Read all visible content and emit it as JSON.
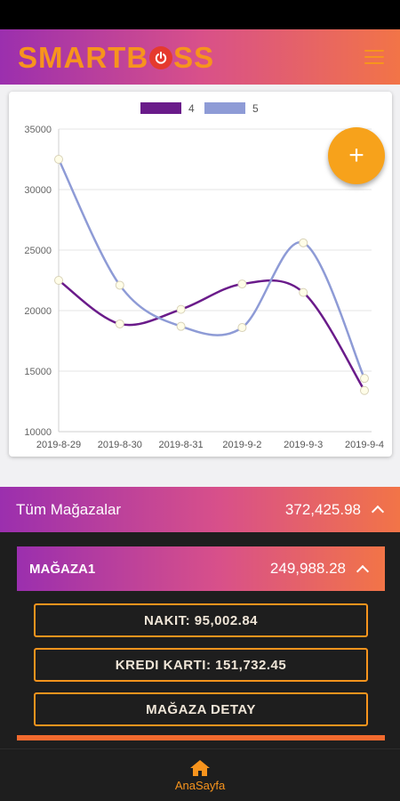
{
  "app": {
    "logo_left": "SMARTB",
    "logo_right": "SS"
  },
  "colors": {
    "accent_orange": "#f7941d",
    "gradient_start": "#9b2fae",
    "gradient_end": "#f27447",
    "series_4": "#6a1b8a",
    "series_5": "#8e9bd6"
  },
  "icons": {
    "menu": "hamburger-menu-icon",
    "fab": "plus-icon",
    "expand": "chevron-up-icon",
    "home": "home-icon"
  },
  "fab": {
    "label": "+"
  },
  "chart_data": {
    "type": "line",
    "categories": [
      "2019-8-29",
      "2019-8-30",
      "2019-8-31",
      "2019-9-2",
      "2019-9-3",
      "2019-9-4"
    ],
    "series": [
      {
        "name": "4",
        "values": [
          22500,
          18900,
          20100,
          22200,
          21500,
          13400
        ],
        "color": "#6a1b8a"
      },
      {
        "name": "5",
        "values": [
          32500,
          22100,
          18700,
          18600,
          25600,
          14400
        ],
        "color": "#8e9bd6"
      }
    ],
    "ylim": [
      10000,
      35000
    ],
    "yticks": [
      "10000",
      "15000",
      "20000",
      "25000",
      "30000",
      "35000"
    ],
    "grid": true,
    "legend": "top-center"
  },
  "summary": {
    "all_stores_label": "Tüm Mağazalar",
    "all_stores_total": "372,425.98"
  },
  "store": {
    "name": "MAĞAZA1",
    "total": "249,988.28",
    "cash_label": "NAKIT: 95,002.84",
    "card_label": "KREDI KARTI: 151,732.45",
    "detail_label": "MAĞAZA DETAY"
  },
  "nav": {
    "home_label": "AnaSayfa"
  }
}
